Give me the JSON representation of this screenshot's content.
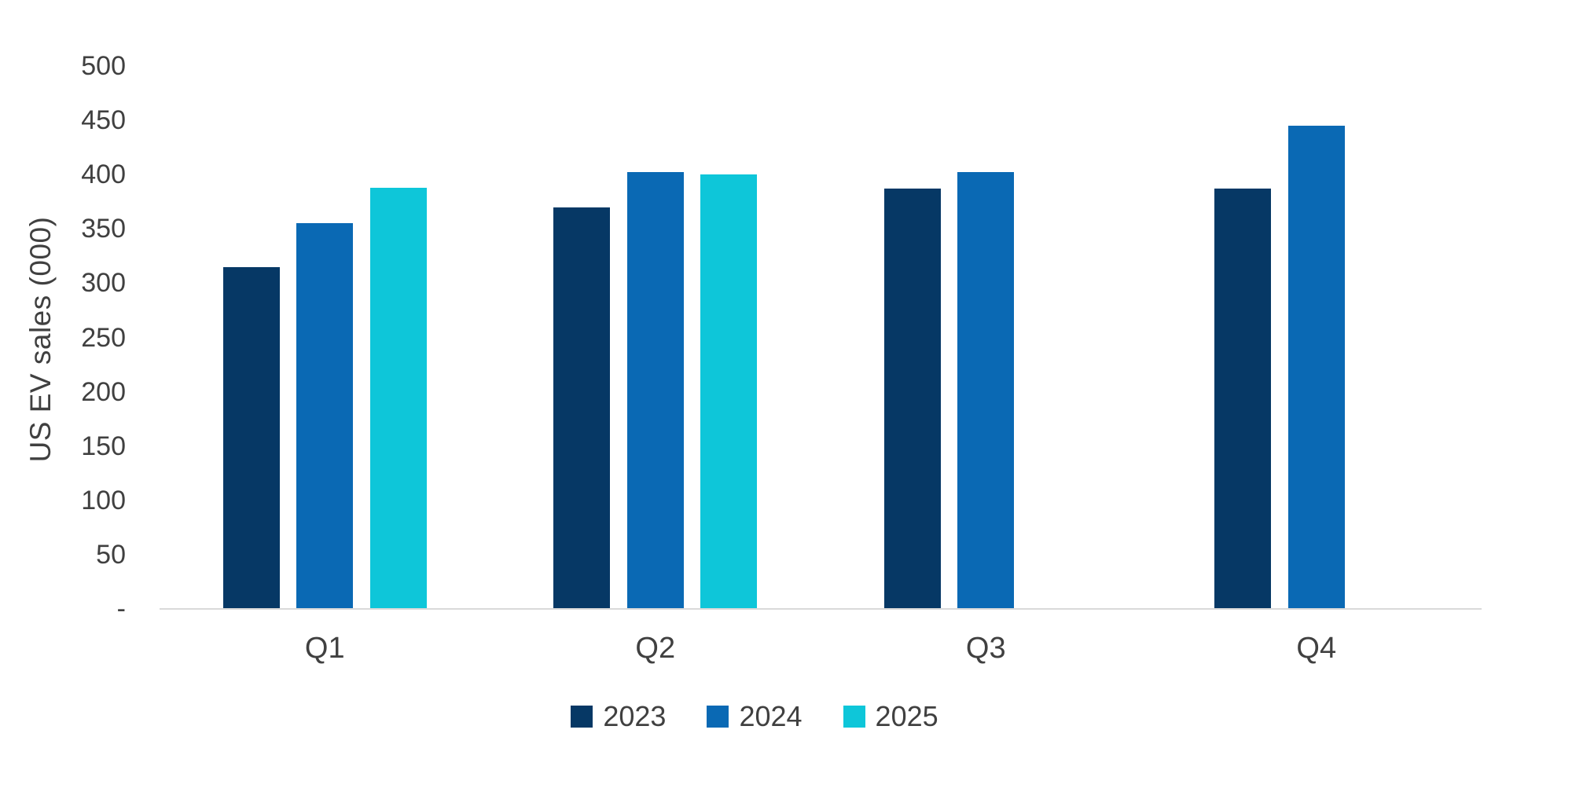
{
  "chart_data": {
    "type": "bar",
    "title": "",
    "xlabel": "",
    "ylabel": "US EV sales (000)",
    "categories": [
      "Q1",
      "Q2",
      "Q3",
      "Q4"
    ],
    "series": [
      {
        "name": "2023",
        "color": "#063865",
        "values": [
          315,
          370,
          387,
          387
        ]
      },
      {
        "name": "2024",
        "color": "#0A69B4",
        "values": [
          355,
          402,
          402,
          445
        ]
      },
      {
        "name": "2025",
        "color": "#0EC6D9",
        "values": [
          388,
          400,
          null,
          null
        ]
      }
    ],
    "ylim": [
      0,
      500
    ],
    "ytick_step": 50,
    "zero_tick_label": "-",
    "grid": false,
    "legend_position": "bottom"
  },
  "colors": {
    "text": "#404040",
    "axis_line": "#D9D9D9",
    "background": "#FFFFFF"
  }
}
